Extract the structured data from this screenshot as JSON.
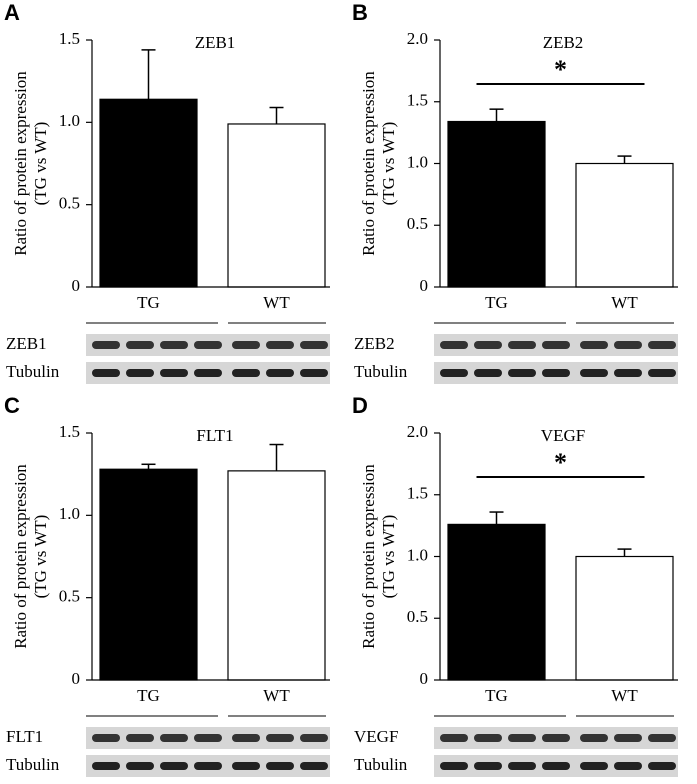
{
  "chart_data": [
    {
      "type": "bar",
      "panel": "A",
      "title": "ZEB1",
      "y_label": [
        "Ratio of protein expression",
        "(TG vs WT)"
      ],
      "categories": [
        "TG",
        "WT"
      ],
      "values": [
        1.14,
        0.99
      ],
      "errors": [
        0.3,
        0.1
      ],
      "colors": [
        "#000000",
        "#ffffff"
      ],
      "ylim": [
        0,
        1.5
      ],
      "yticks": [
        0,
        0.5,
        {
          "value": 1,
          "label": "1.0"
        },
        1.5
      ],
      "blot_labels": [
        "ZEB1",
        "Tubulin"
      ]
    },
    {
      "type": "bar",
      "panel": "B",
      "title": "ZEB2",
      "y_label": [
        "Ratio of protein expression",
        "(TG vs WT)"
      ],
      "categories": [
        "TG",
        "WT"
      ],
      "values": [
        1.34,
        1.0
      ],
      "errors": [
        0.1,
        0.06
      ],
      "colors": [
        "#000000",
        "#ffffff"
      ],
      "ylim": [
        0,
        2
      ],
      "yticks": [
        0,
        0.5,
        {
          "value": 1,
          "label": "1.0"
        },
        1.5,
        {
          "value": 2,
          "label": "2.0"
        }
      ],
      "significance": "*",
      "blot_labels": [
        "ZEB2",
        "Tubulin"
      ]
    },
    {
      "type": "bar",
      "panel": "C",
      "title": "FLT1",
      "y_label": [
        "Ratio of protein expression",
        "(TG vs WT)"
      ],
      "categories": [
        "TG",
        "WT"
      ],
      "values": [
        1.28,
        1.27
      ],
      "errors": [
        0.03,
        0.16
      ],
      "colors": [
        "#000000",
        "#ffffff"
      ],
      "ylim": [
        0,
        1.5
      ],
      "yticks": [
        0,
        0.5,
        {
          "value": 1,
          "label": "1.0"
        },
        1.5
      ],
      "blot_labels": [
        "FLT1",
        "Tubulin"
      ]
    },
    {
      "type": "bar",
      "panel": "D",
      "title": "VEGF",
      "y_label": [
        "Ratio of protein expression",
        "(TG vs WT)"
      ],
      "categories": [
        "TG",
        "WT"
      ],
      "values": [
        1.26,
        1.0
      ],
      "errors": [
        0.1,
        0.06
      ],
      "colors": [
        "#000000",
        "#ffffff"
      ],
      "ylim": [
        0,
        2
      ],
      "yticks": [
        0,
        0.5,
        {
          "value": 1,
          "label": "1.0"
        },
        1.5,
        {
          "value": 2,
          "label": "2.0"
        }
      ],
      "significance": "*",
      "blot_labels": [
        "VEGF",
        "Tubulin"
      ]
    }
  ]
}
